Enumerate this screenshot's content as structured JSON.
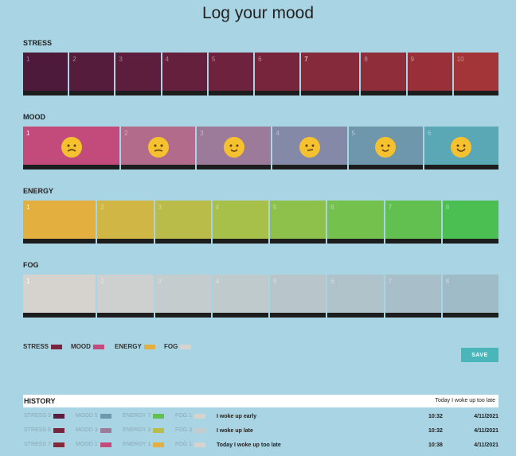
{
  "header": {
    "title": "Log your mood"
  },
  "sections": [
    {
      "label": "STRESS",
      "selected": 6,
      "cells": [
        {
          "number": "1",
          "color": "#4e1a3c"
        },
        {
          "number": "2",
          "color": "#561c3c"
        },
        {
          "number": "3",
          "color": "#5d1e3d"
        },
        {
          "number": "4",
          "color": "#65203d"
        },
        {
          "number": "5",
          "color": "#6e223d"
        },
        {
          "number": "6",
          "color": "#77243d"
        },
        {
          "number": "7",
          "color": "#852a3b"
        },
        {
          "number": "8",
          "color": "#8f2d3a"
        },
        {
          "number": "9",
          "color": "#993039"
        },
        {
          "number": "10",
          "color": "#a33438"
        }
      ]
    },
    {
      "label": "MOOD",
      "selected": 0,
      "cells": [
        {
          "number": "1",
          "color": "#c24b7c"
        },
        {
          "number": "2",
          "color": "#b36b8c"
        },
        {
          "number": "3",
          "color": "#9b7a9a"
        },
        {
          "number": "4",
          "color": "#8389a6"
        },
        {
          "number": "5",
          "color": "#6f97ab"
        },
        {
          "number": "6",
          "color": "#5aa8b5"
        }
      ]
    },
    {
      "label": "ENERGY",
      "selected": 0,
      "cells": [
        {
          "number": "1",
          "color": "#e3b040"
        },
        {
          "number": "2",
          "color": "#d0b745"
        },
        {
          "number": "3",
          "color": "#b9bc48"
        },
        {
          "number": "4",
          "color": "#a6c04a"
        },
        {
          "number": "5",
          "color": "#8dc14c"
        },
        {
          "number": "6",
          "color": "#75c14e"
        },
        {
          "number": "7",
          "color": "#61c050"
        },
        {
          "number": "8",
          "color": "#4cbf52"
        }
      ]
    },
    {
      "label": "FOG",
      "selected": 0,
      "cells": [
        {
          "number": "1",
          "color": "#d6d3cf"
        },
        {
          "number": "2",
          "color": "#cdd0cf"
        },
        {
          "number": "3",
          "color": "#c5cccd"
        },
        {
          "number": "4",
          "color": "#bfcacd"
        },
        {
          "number": "5",
          "color": "#b8c6cc"
        },
        {
          "number": "6",
          "color": "#b0c3cb"
        },
        {
          "number": "7",
          "color": "#a8bfc9"
        },
        {
          "number": "8",
          "color": "#9fbbc7"
        }
      ]
    }
  ],
  "legend": [
    {
      "label": "STRESS",
      "color": "#7a2440"
    },
    {
      "label": "MOOD",
      "color": "#c24b7c"
    },
    {
      "label": "ENERGY",
      "color": "#e3b040"
    },
    {
      "label": "FOG",
      "color": "#d6d3cf"
    }
  ],
  "save_button": "SAVE",
  "history": {
    "title": "HISTORY",
    "current_note": "Today I woke up too late",
    "rows": [
      {
        "stress": "STRESS 3",
        "stress_color": "#5d1e3d",
        "mood": "MOOD 5",
        "mood_color": "#6f97ab",
        "energy": "ENERGY 7",
        "energy_color": "#61c050",
        "fog": "FOG 1",
        "fog_color": "#d6d3cf",
        "note": "I woke up early",
        "time": "10:32",
        "date": "4/11/2021"
      },
      {
        "stress": "STRESS 6",
        "stress_color": "#77243d",
        "mood": "MOOD 3",
        "mood_color": "#9b7a9a",
        "energy": "ENERGY 3",
        "energy_color": "#b9bc48",
        "fog": "FOG 3",
        "fog_color": "#c5cccd",
        "note": "I woke up late",
        "time": "10:32",
        "date": "4/11/2021"
      },
      {
        "stress": "STRESS 7",
        "stress_color": "#852a3b",
        "mood": "MOOD 1",
        "mood_color": "#c24b7c",
        "energy": "ENERGY 1",
        "energy_color": "#e3b040",
        "fog": "FOG 1",
        "fog_color": "#d6d3cf",
        "note": "Today I woke up too late",
        "time": "10:38",
        "date": "4/11/2021"
      }
    ]
  }
}
